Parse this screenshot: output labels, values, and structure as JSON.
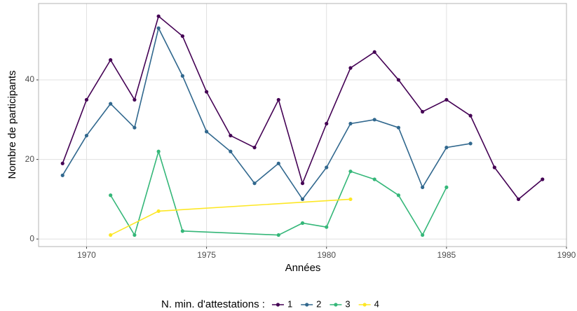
{
  "chart_data": {
    "type": "line",
    "xlabel": "Années",
    "ylabel": "Nombre de participants",
    "legend_title": "N. min. d'attestations :",
    "legend_position": "bottom",
    "xlim": [
      1968,
      1990
    ],
    "xticks": [
      1970,
      1975,
      1980,
      1985,
      1990
    ],
    "ylim": [
      -1.9,
      59.2
    ],
    "yticks": [
      0,
      20,
      40
    ],
    "grid": true,
    "series": [
      {
        "name": "1",
        "color": "#440154",
        "x": [
          1969,
          1970,
          1971,
          1972,
          1973,
          1974,
          1975,
          1976,
          1977,
          1978,
          1979,
          1980,
          1981,
          1982,
          1983,
          1984,
          1985,
          1986,
          1987,
          1988,
          1989
        ],
        "values": [
          19,
          35,
          45,
          35,
          56,
          51,
          37,
          26,
          23,
          35,
          14,
          29,
          43,
          47,
          40,
          32,
          35,
          31,
          18,
          10,
          15
        ]
      },
      {
        "name": "2",
        "color": "#31688e",
        "x": [
          1969,
          1970,
          1971,
          1972,
          1973,
          1974,
          1975,
          1976,
          1977,
          1978,
          1979,
          1980,
          1981,
          1982,
          1983,
          1984,
          1985,
          1986
        ],
        "values": [
          16,
          26,
          34,
          28,
          53,
          41,
          27,
          22,
          14,
          19,
          10,
          18,
          29,
          30,
          28,
          13,
          23,
          24
        ]
      },
      {
        "name": "3",
        "color": "#35b779",
        "x": [
          1971,
          1972,
          1973,
          1974,
          1978,
          1979,
          1980,
          1981,
          1982,
          1983,
          1984,
          1985
        ],
        "values": [
          11,
          1,
          22,
          2,
          1,
          4,
          3,
          17,
          15,
          11,
          1,
          13
        ]
      },
      {
        "name": "4",
        "color": "#fde725",
        "x": [
          1971,
          1973,
          1981
        ],
        "values": [
          1,
          7,
          10
        ]
      }
    ]
  }
}
